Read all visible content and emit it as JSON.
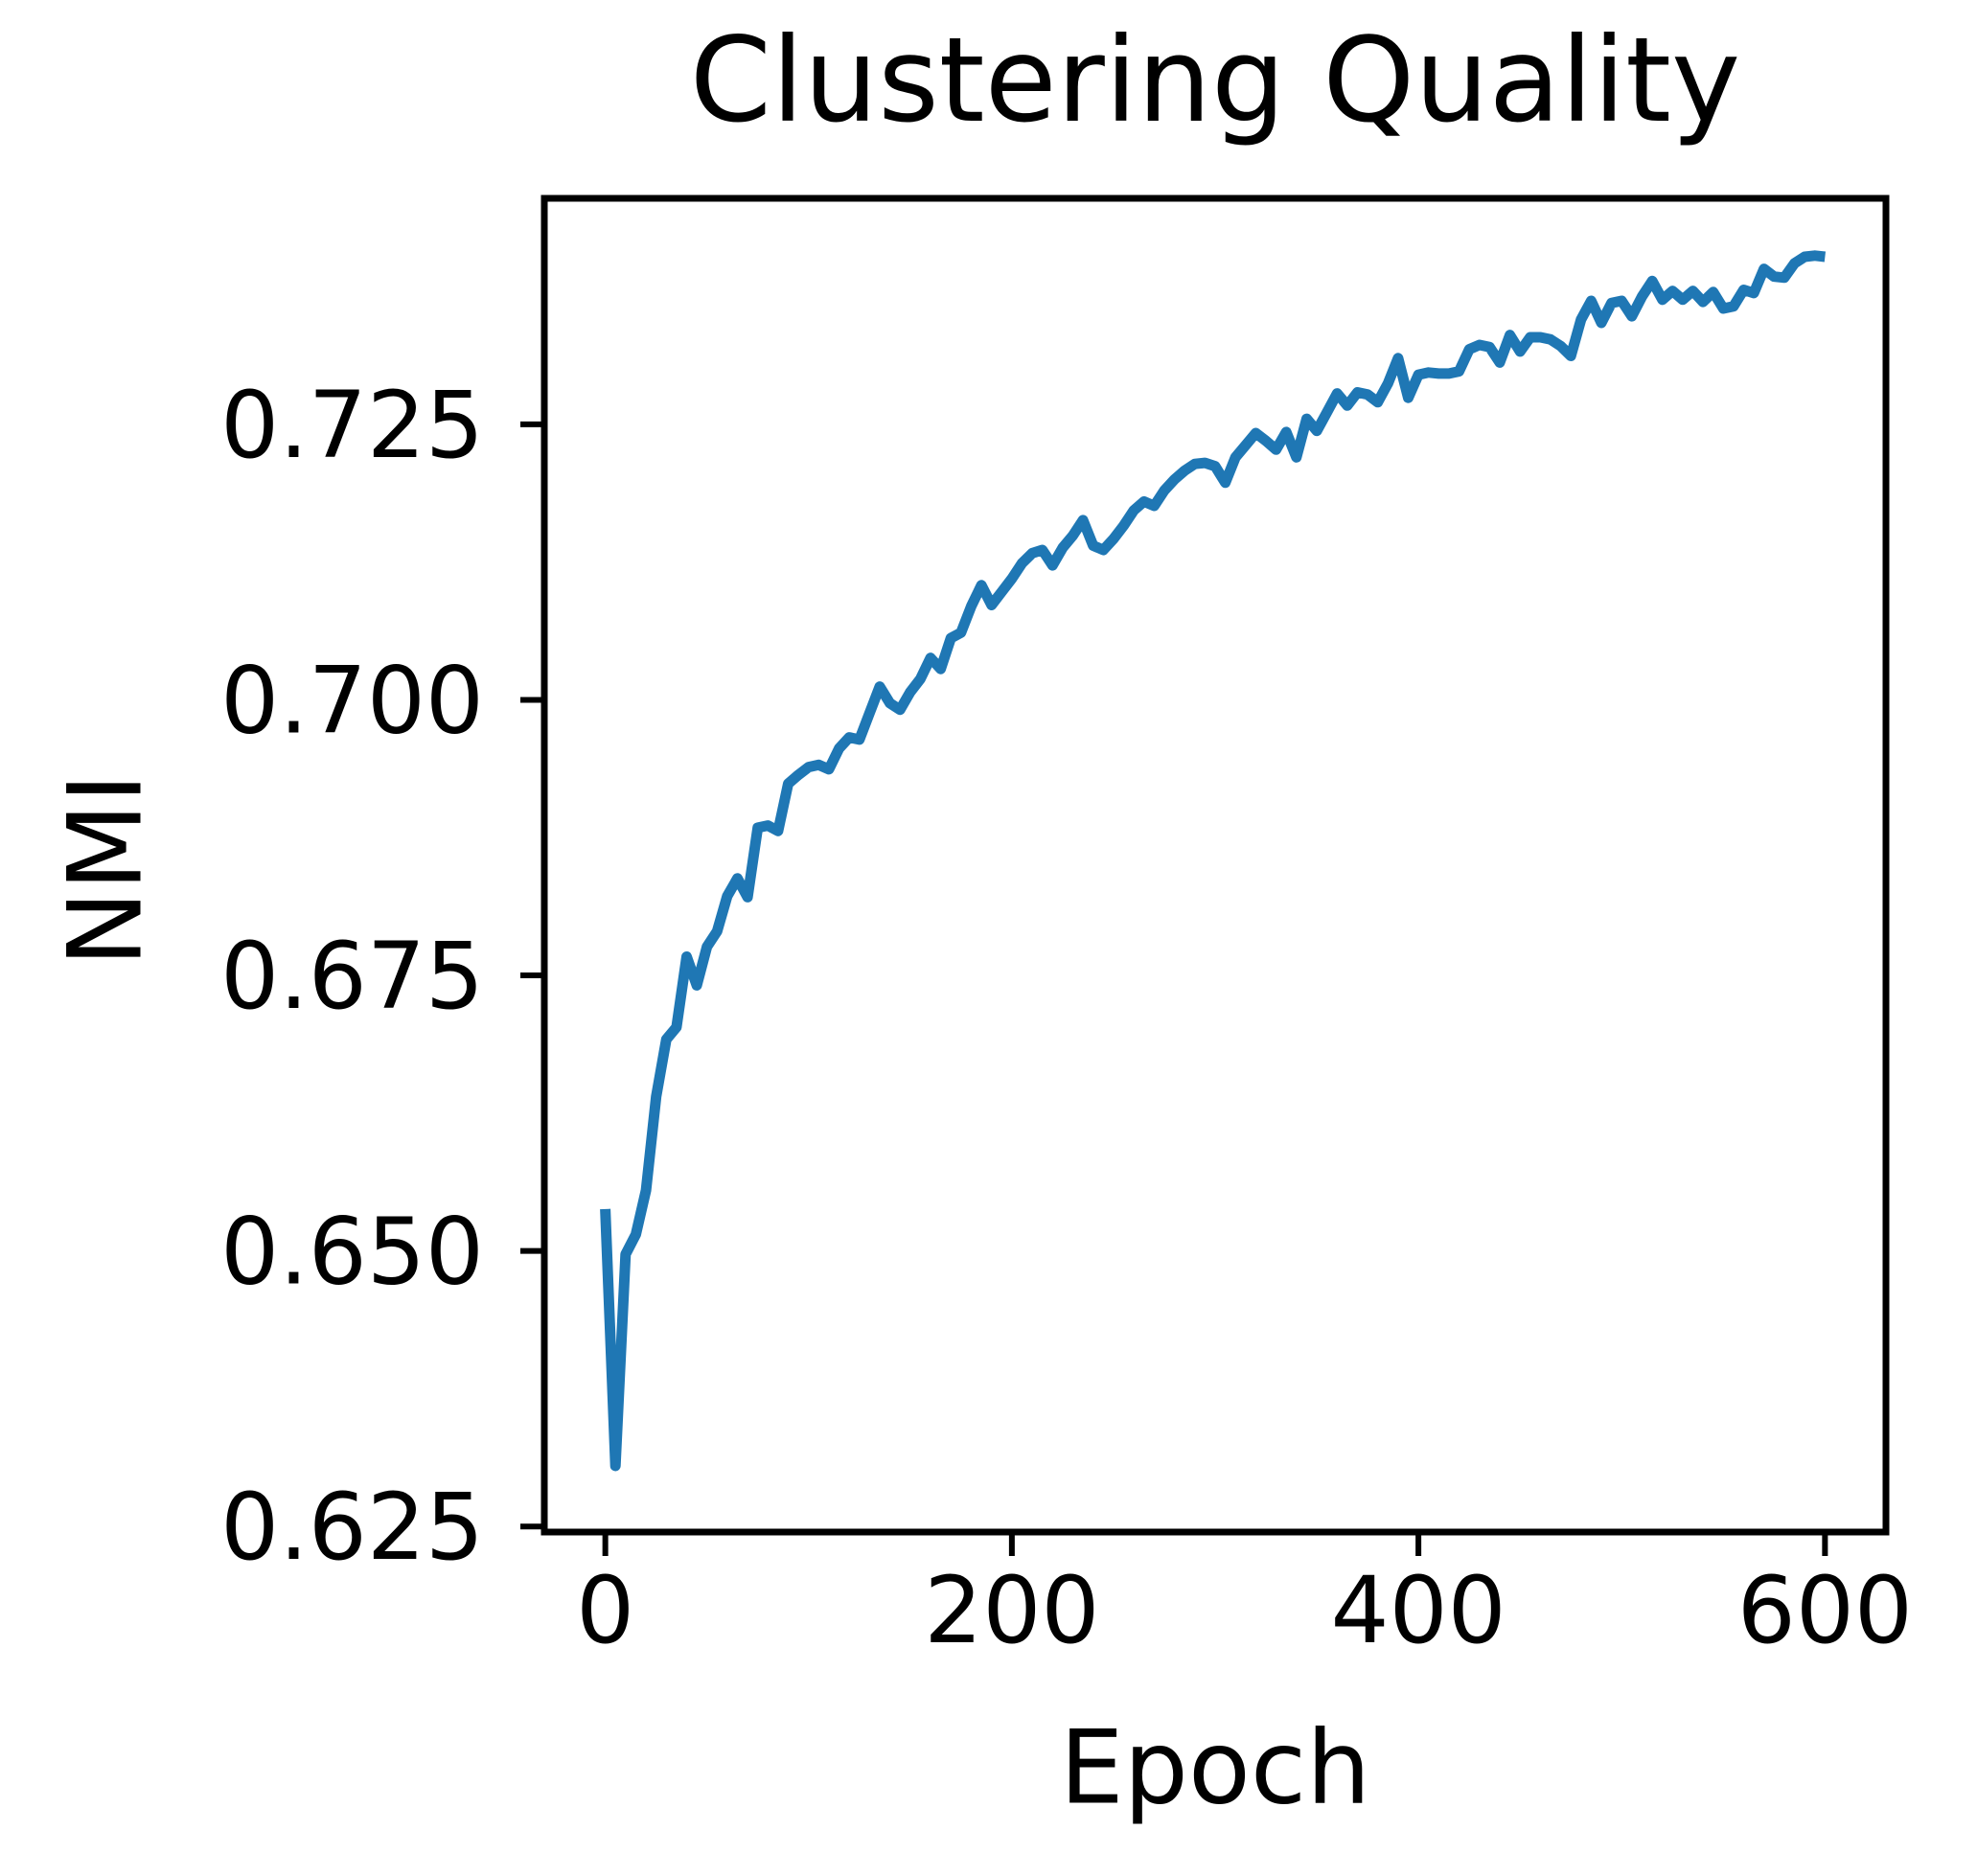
{
  "figure": {
    "title": "Clustering Quality",
    "xlabel": "Epoch",
    "ylabel": "NMI"
  },
  "chart_data": {
    "type": "line",
    "title": "Clustering Quality",
    "xlabel": "Epoch",
    "ylabel": "NMI",
    "grid": false,
    "legend_position": "none",
    "line_color": "#1f77b4",
    "axis_color": "#000000",
    "background_color": "#ffffff",
    "xlim": [
      -30,
      630
    ],
    "ylim": [
      0.6245,
      0.7455
    ],
    "xticks": [
      0,
      200,
      400,
      600
    ],
    "xtick_labels": [
      "0",
      "200",
      "400",
      "600"
    ],
    "yticks": [
      0.625,
      0.65,
      0.675,
      0.7,
      0.725
    ],
    "ytick_labels": [
      "0.625",
      "0.650",
      "0.675",
      "0.700",
      "0.725"
    ],
    "series": [
      {
        "name": "NMI",
        "x": [
          0,
          5,
          10,
          15,
          20,
          25,
          30,
          35,
          40,
          45,
          50,
          55,
          60,
          65,
          70,
          75,
          80,
          85,
          90,
          95,
          100,
          105,
          110,
          115,
          120,
          125,
          130,
          135,
          140,
          145,
          150,
          155,
          160,
          165,
          170,
          175,
          180,
          185,
          190,
          195,
          200,
          205,
          210,
          215,
          220,
          225,
          230,
          235,
          240,
          245,
          250,
          255,
          260,
          265,
          270,
          275,
          280,
          285,
          290,
          295,
          300,
          305,
          310,
          315,
          320,
          325,
          330,
          335,
          340,
          345,
          350,
          355,
          360,
          365,
          370,
          375,
          380,
          385,
          390,
          395,
          400,
          405,
          410,
          415,
          420,
          425,
          430,
          435,
          440,
          445,
          450,
          455,
          460,
          465,
          470,
          475,
          480,
          485,
          490,
          495,
          500,
          505,
          510,
          515,
          520,
          525,
          530,
          535,
          540,
          545,
          550,
          555,
          560,
          565,
          570,
          575,
          580,
          585,
          590,
          595,
          600
        ],
        "y": [
          0.6538,
          0.6305,
          0.6497,
          0.6515,
          0.6555,
          0.664,
          0.6692,
          0.6703,
          0.6767,
          0.6741,
          0.6776,
          0.679,
          0.6822,
          0.6838,
          0.6821,
          0.6884,
          0.6886,
          0.6881,
          0.6924,
          0.6932,
          0.6939,
          0.6941,
          0.6937,
          0.6956,
          0.6966,
          0.6964,
          0.6988,
          0.7012,
          0.6997,
          0.6991,
          0.7007,
          0.7019,
          0.7038,
          0.7028,
          0.7056,
          0.7061,
          0.7085,
          0.7104,
          0.7086,
          0.7098,
          0.711,
          0.7124,
          0.7133,
          0.7136,
          0.7122,
          0.7138,
          0.7149,
          0.7163,
          0.714,
          0.7136,
          0.7146,
          0.7158,
          0.7172,
          0.718,
          0.7176,
          0.719,
          0.72,
          0.7208,
          0.7214,
          0.7215,
          0.7212,
          0.7197,
          0.722,
          0.7231,
          0.7242,
          0.7235,
          0.7227,
          0.7243,
          0.722,
          0.7255,
          0.7244,
          0.7261,
          0.7278,
          0.7267,
          0.7279,
          0.7277,
          0.727,
          0.7287,
          0.731,
          0.7274,
          0.7295,
          0.7297,
          0.7296,
          0.7296,
          0.7298,
          0.7318,
          0.7322,
          0.732,
          0.7306,
          0.7331,
          0.7316,
          0.7329,
          0.7329,
          0.7327,
          0.7321,
          0.7312,
          0.7345,
          0.7362,
          0.7342,
          0.736,
          0.7362,
          0.7348,
          0.7366,
          0.738,
          0.7363,
          0.7371,
          0.7363,
          0.7371,
          0.7361,
          0.737,
          0.7355,
          0.7357,
          0.7372,
          0.7369,
          0.7391,
          0.7384,
          0.7383,
          0.7396,
          0.7402,
          0.7403,
          0.7402
        ]
      }
    ]
  }
}
